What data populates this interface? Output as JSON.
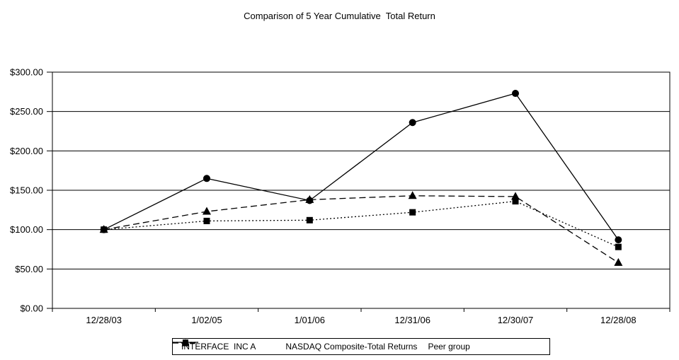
{
  "title": "Comparison of 5 Year Cumulative  Total Return",
  "chart_data": {
    "type": "line",
    "title": "Comparison of 5 Year Cumulative Total Return",
    "categories": [
      "12/28/03",
      "1/02/05",
      "1/01/06",
      "12/31/06",
      "12/30/07",
      "12/28/08"
    ],
    "series": [
      {
        "name": "INTERFACE  INC A",
        "marker": "circle",
        "line_style": "solid",
        "values": [
          100.0,
          165.0,
          137.0,
          236.0,
          273.0,
          87.0
        ]
      },
      {
        "name": "NASDAQ Composite-Total Returns",
        "marker": "square",
        "line_style": "dotted",
        "values": [
          100.0,
          111.0,
          112.0,
          122.0,
          136.0,
          78.0
        ]
      },
      {
        "name": "Peer group",
        "marker": "triangle",
        "line_style": "dashed",
        "values": [
          100.0,
          123.0,
          138.0,
          143.0,
          142.0,
          58.0
        ]
      }
    ],
    "xlabel": "",
    "ylabel": "",
    "ylim": [
      0,
      300
    ],
    "ytick_step": 50,
    "ytick_labels": [
      "$0.00",
      "$50.00",
      "$100.00",
      "$150.00",
      "$200.00",
      "$250.00",
      "$300.00"
    ],
    "grid": true,
    "legend_position": "bottom",
    "series_color": "#000000",
    "background_color": "#ffffff"
  }
}
